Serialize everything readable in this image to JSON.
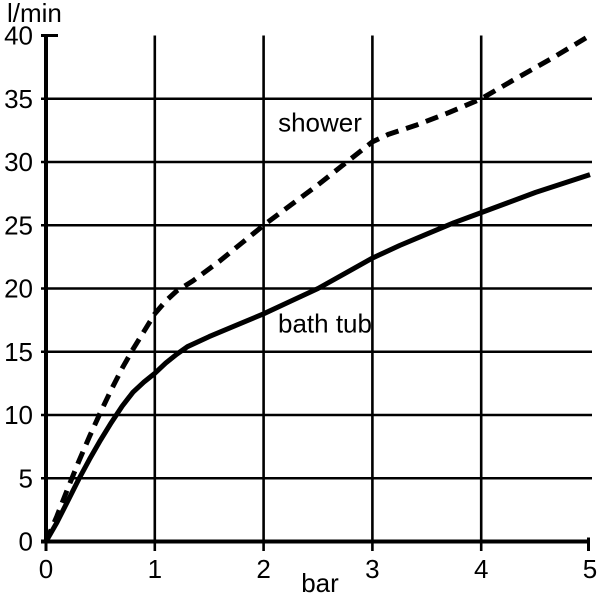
{
  "page": {
    "background_color": "#ffffff",
    "foreground_color": "#000000"
  },
  "chart_data": {
    "type": "line",
    "title": "",
    "xlabel": "bar",
    "ylabel": "l/min",
    "xlim": [
      0,
      5
    ],
    "ylim": [
      0,
      40
    ],
    "xticks": [
      0,
      1,
      2,
      3,
      4,
      5
    ],
    "yticks": [
      0,
      5,
      10,
      15,
      20,
      25,
      30,
      35,
      40
    ],
    "grid": true,
    "legend_position": "inline-labels",
    "series": [
      {
        "name": "shower",
        "label": "shower",
        "style": "dashed",
        "color": "#000000",
        "points": [
          [
            0,
            0
          ],
          [
            0.1,
            2
          ],
          [
            0.2,
            4.2
          ],
          [
            0.3,
            6.3
          ],
          [
            0.4,
            8.3
          ],
          [
            0.5,
            10.2
          ],
          [
            0.6,
            12
          ],
          [
            0.7,
            13.7
          ],
          [
            0.8,
            15.2
          ],
          [
            0.9,
            16.6
          ],
          [
            1,
            18
          ],
          [
            1.1,
            19
          ],
          [
            1.2,
            19.8
          ],
          [
            1.35,
            20.6
          ],
          [
            1.6,
            22.2
          ],
          [
            1.8,
            23.6
          ],
          [
            2,
            25
          ],
          [
            2.25,
            26.6
          ],
          [
            2.5,
            28.2
          ],
          [
            2.75,
            29.9
          ],
          [
            3,
            31.6
          ],
          [
            3.15,
            32.2
          ],
          [
            3.4,
            32.9
          ],
          [
            3.7,
            33.9
          ],
          [
            4,
            35
          ],
          [
            4.3,
            36.5
          ],
          [
            4.65,
            38.2
          ],
          [
            5,
            40
          ]
        ]
      },
      {
        "name": "bath tub",
        "label": "bath tub",
        "style": "solid",
        "color": "#000000",
        "points": [
          [
            0,
            0
          ],
          [
            0.1,
            1.5
          ],
          [
            0.2,
            3.2
          ],
          [
            0.3,
            4.9
          ],
          [
            0.4,
            6.5
          ],
          [
            0.5,
            8
          ],
          [
            0.6,
            9.4
          ],
          [
            0.7,
            10.7
          ],
          [
            0.8,
            11.8
          ],
          [
            0.9,
            12.6
          ],
          [
            1,
            13.3
          ],
          [
            1.1,
            14.1
          ],
          [
            1.2,
            14.8
          ],
          [
            1.3,
            15.4
          ],
          [
            1.5,
            16.2
          ],
          [
            1.75,
            17.1
          ],
          [
            2,
            18
          ],
          [
            2.25,
            19
          ],
          [
            2.5,
            20
          ],
          [
            2.75,
            21.2
          ],
          [
            3,
            22.4
          ],
          [
            3.25,
            23.4
          ],
          [
            3.5,
            24.3
          ],
          [
            3.75,
            25.2
          ],
          [
            4,
            26
          ],
          [
            4.25,
            26.8
          ],
          [
            4.5,
            27.6
          ],
          [
            4.75,
            28.3
          ],
          [
            5,
            29
          ]
        ]
      }
    ]
  }
}
